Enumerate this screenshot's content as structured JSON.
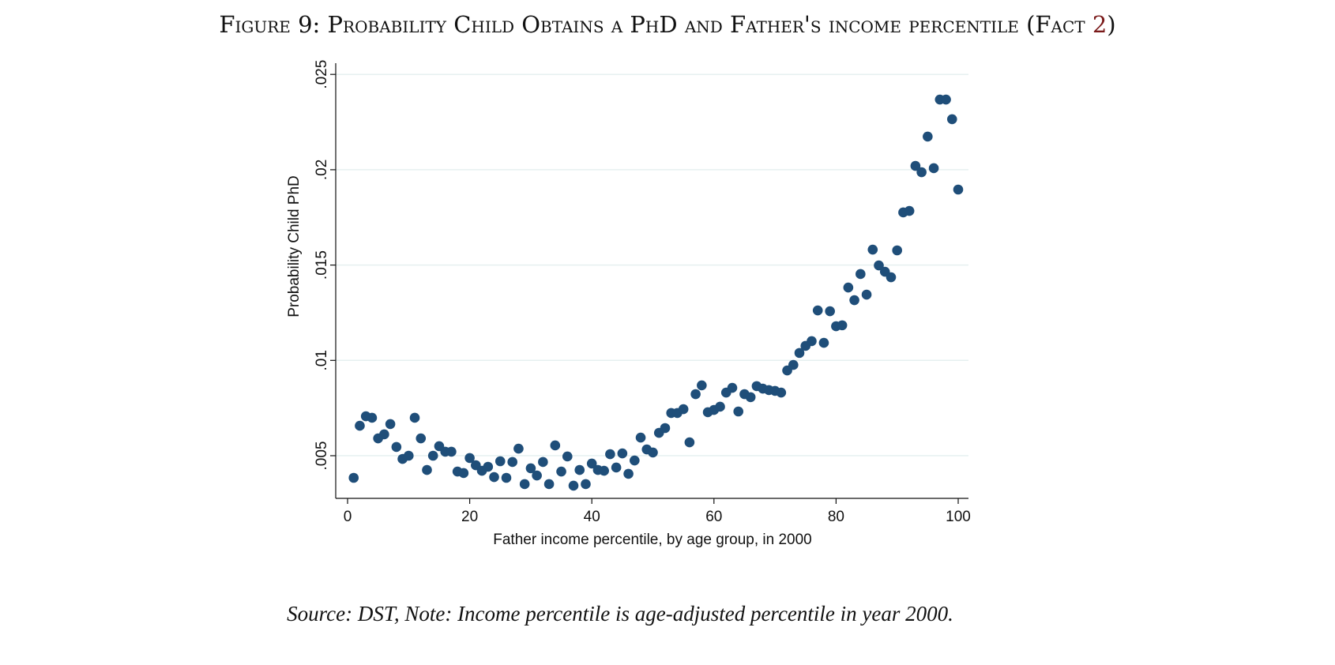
{
  "title": {
    "prefix": "Figure 9: Probability Child Obtains a PhD and Father's income percentile (Fact ",
    "ref": "2",
    "suffix": ")"
  },
  "note": "Source: DST, Note: Income percentile is age-adjusted percentile in year 2000.",
  "colors": {
    "marker": "#1f4e79",
    "grid": "#e6f0f0",
    "ref_link": "#7a1a1a"
  },
  "chart_data": {
    "type": "scatter",
    "title": "",
    "xlabel": "Father income percentile, by age group, in 2000",
    "ylabel": "Probability Child PhD",
    "xlim": [
      0,
      100
    ],
    "ylim": [
      0.003,
      0.025
    ],
    "xticks": [
      0,
      20,
      40,
      60,
      80,
      100
    ],
    "xtick_labels": [
      "0",
      "20",
      "40",
      "60",
      "80",
      "100"
    ],
    "yticks": [
      0.005,
      0.01,
      0.015,
      0.02,
      0.025
    ],
    "ytick_labels": [
      ".005",
      ".01",
      ".015",
      ".02",
      ".025"
    ],
    "grid": "horizontal",
    "x": [
      1,
      2,
      3,
      4,
      5,
      6,
      7,
      8,
      9,
      10,
      11,
      12,
      13,
      14,
      15,
      16,
      17,
      18,
      19,
      20,
      21,
      22,
      23,
      24,
      25,
      26,
      27,
      28,
      29,
      30,
      31,
      32,
      33,
      34,
      35,
      36,
      37,
      38,
      39,
      40,
      41,
      42,
      43,
      44,
      45,
      46,
      47,
      48,
      49,
      50,
      51,
      52,
      53,
      54,
      55,
      56,
      57,
      58,
      59,
      60,
      61,
      62,
      63,
      64,
      65,
      66,
      67,
      68,
      69,
      70,
      71,
      72,
      73,
      74,
      75,
      76,
      77,
      78,
      79,
      80,
      81,
      82,
      83,
      84,
      85,
      86,
      87,
      88,
      89,
      90,
      91,
      92,
      93,
      94,
      95,
      96,
      97,
      98,
      99,
      100
    ],
    "y": [
      0.00384,
      0.00657,
      0.00707,
      0.00699,
      0.00591,
      0.00612,
      0.00666,
      0.00546,
      0.00483,
      0.005,
      0.00699,
      0.00591,
      0.00425,
      0.005,
      0.0055,
      0.00521,
      0.00521,
      0.00417,
      0.00409,
      0.00488,
      0.0045,
      0.00421,
      0.00442,
      0.00388,
      0.00471,
      0.00384,
      0.00467,
      0.00537,
      0.00351,
      0.00434,
      0.00396,
      0.00467,
      0.00351,
      0.00554,
      0.00417,
      0.00496,
      0.00343,
      0.00425,
      0.00351,
      0.00459,
      0.00425,
      0.00421,
      0.00508,
      0.00438,
      0.00512,
      0.00405,
      0.00475,
      0.00595,
      0.00533,
      0.00517,
      0.0062,
      0.00645,
      0.00724,
      0.00724,
      0.00744,
      0.0057,
      0.00823,
      0.00869,
      0.00728,
      0.0074,
      0.00757,
      0.00831,
      0.00856,
      0.00732,
      0.00823,
      0.00807,
      0.00865,
      0.00852,
      0.00844,
      0.0084,
      0.00831,
      0.00947,
      0.00976,
      0.01039,
      0.01076,
      0.01101,
      0.01262,
      0.01092,
      0.01258,
      0.01179,
      0.01184,
      0.01382,
      0.01316,
      0.01453,
      0.01345,
      0.01581,
      0.01498,
      0.01465,
      0.01436,
      0.01577,
      0.01776,
      0.01784,
      0.0202,
      0.01987,
      0.02174,
      0.02008,
      0.02368,
      0.02368,
      0.02265,
      0.01896
    ]
  }
}
